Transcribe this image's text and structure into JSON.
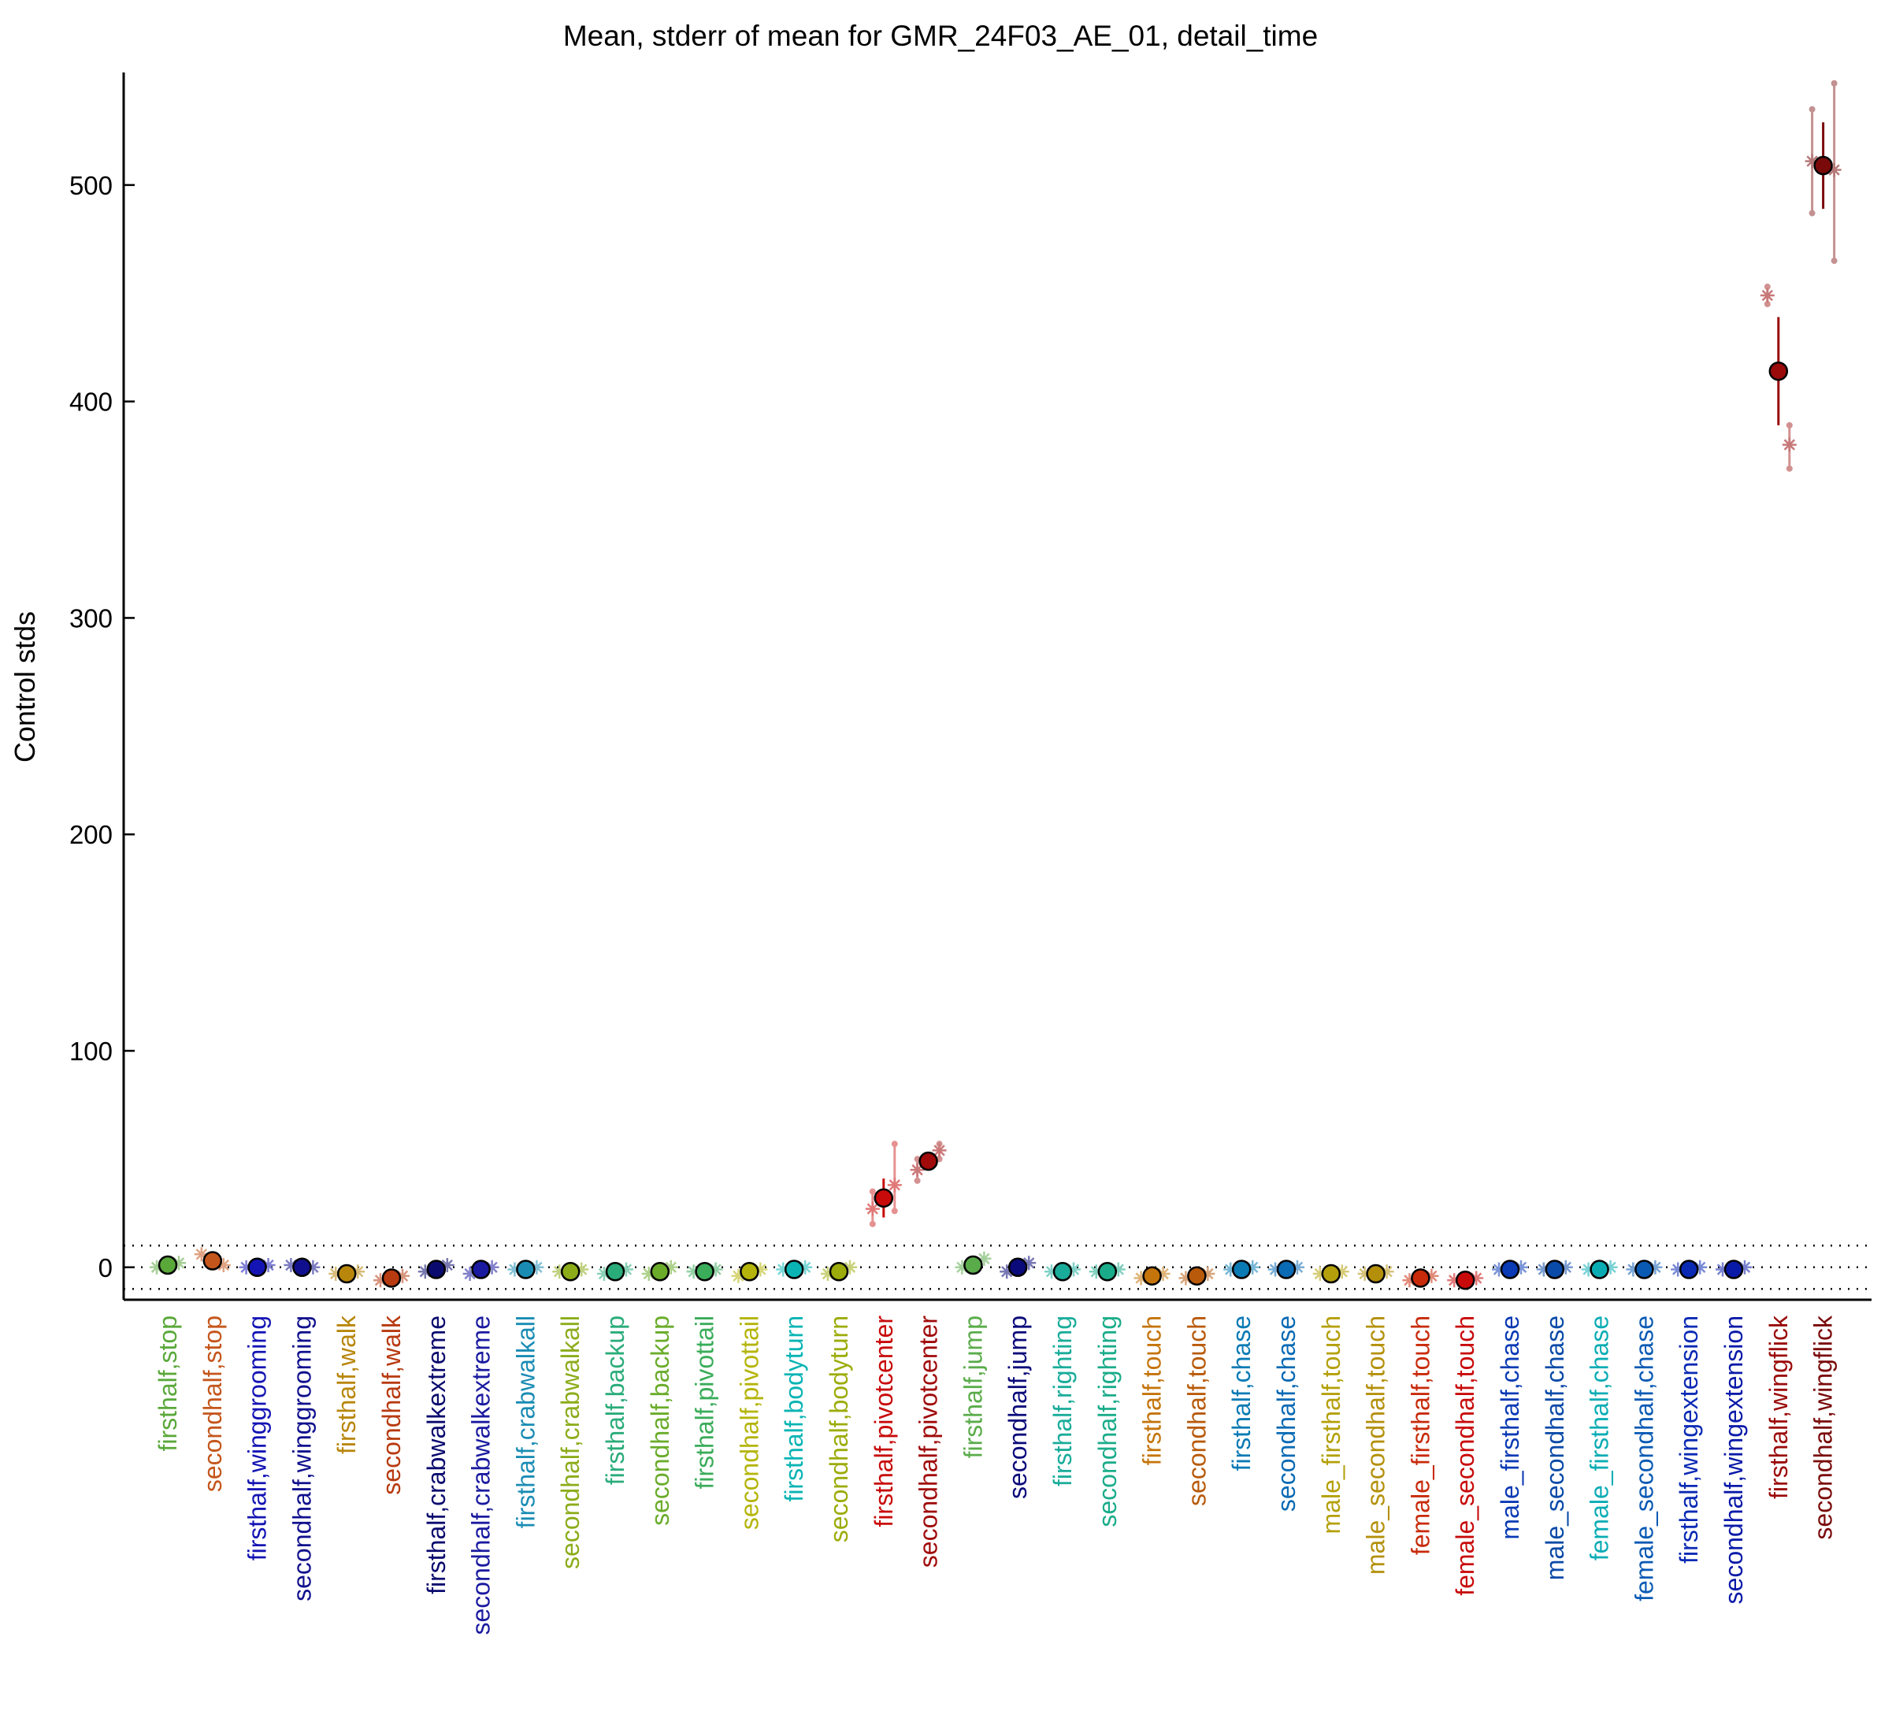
{
  "chart_data": {
    "type": "scatter",
    "title": "Mean, stderr of mean for GMR_24F03_AE_01, detail_time",
    "xlabel": "",
    "ylabel": "Control stds",
    "ylim": [
      -15,
      552
    ],
    "yticks": [
      0,
      100,
      200,
      300,
      400,
      500
    ],
    "reference_lines": [
      -10,
      0,
      10
    ],
    "grid": false,
    "categories": [
      "firsthalf,stop",
      "secondhalf,stop",
      "firsthalf,winggrooming",
      "secondhalf,winggrooming",
      "firsthalf,walk",
      "secondhalf,walk",
      "firsthalf,crabwalkextreme",
      "secondhalf,crabwalkextreme",
      "firsthalf,crabwalkall",
      "secondhalf,crabwalkall",
      "firsthalf,backup",
      "secondhalf,backup",
      "firsthalf,pivottail",
      "secondhalf,pivottail",
      "firsthalf,bodyturn",
      "secondhalf,bodyturn",
      "firsthalf,pivotcenter",
      "secondhalf,pivotcenter",
      "firsthalf,jump",
      "secondhalf,jump",
      "firsthalf,righting",
      "secondhalf,righting",
      "firsthalf,touch",
      "secondhalf,touch",
      "firsthalf,chase",
      "secondhalf,chase",
      "male_firsthalf,touch",
      "male_secondhalf,touch",
      "female_firsthalf,touch",
      "female_secondhalf,touch",
      "male_firsthalf,chase",
      "male_secondhalf,chase",
      "female_firsthalf,chase",
      "female_secondhalf,chase",
      "firsthalf,wingextension",
      "secondhalf,wingextension",
      "firsthalf,wingflick",
      "secondhalf,wingflick"
    ],
    "colors": [
      "#5aa83a",
      "#c4561c",
      "#1414b4",
      "#10108e",
      "#b8860b",
      "#b83a10",
      "#0a0a6e",
      "#1a1aa0",
      "#1a8cb4",
      "#8cac1a",
      "#2aac7a",
      "#6aac2a",
      "#3aac5a",
      "#b4b40a",
      "#0ab4b4",
      "#9cac0a",
      "#c80a0a",
      "#a00a0a",
      "#5aac4a",
      "#0a0a7a",
      "#1aac9a",
      "#1aac8a",
      "#c4740a",
      "#b85a0a",
      "#0a7ab4",
      "#0a6ab4",
      "#b4a00a",
      "#b4900a",
      "#c82a0a",
      "#c80a0a",
      "#0a3ab4",
      "#0a4aa8",
      "#0aacb4",
      "#0a5ab4",
      "#0a2ab4",
      "#0a1aa8",
      "#9a0a0a",
      "#7a0a0a"
    ],
    "series": [
      {
        "name": "mean",
        "values": [
          1,
          3,
          0,
          0,
          -3,
          -5,
          -1,
          -1,
          -1,
          -2,
          -2,
          -2,
          -2,
          -2,
          -1,
          -2,
          32,
          49,
          1,
          0,
          -2,
          -2,
          -4,
          -4,
          -1,
          -1,
          -3,
          -3,
          -5,
          -6,
          -1,
          -1,
          -1,
          -1,
          -1,
          -1,
          414,
          509
        ],
        "stderr": [
          1,
          1,
          1,
          1,
          1,
          1,
          1,
          1,
          1,
          1,
          1,
          1,
          1,
          1,
          1,
          1,
          9,
          4,
          1,
          1,
          1,
          1,
          1,
          1,
          1,
          1,
          1,
          1,
          1,
          1,
          1,
          1,
          1,
          1,
          1,
          1,
          25,
          20
        ]
      },
      {
        "name": "individual",
        "points": [
          [
            1.0,
            0
          ],
          [
            1.0,
            2
          ],
          [
            2.0,
            6
          ],
          [
            2.0,
            1
          ],
          [
            3.0,
            0
          ],
          [
            3.0,
            1
          ],
          [
            4.0,
            1
          ],
          [
            4.0,
            0
          ],
          [
            5.0,
            -3
          ],
          [
            5.0,
            -2
          ],
          [
            6.0,
            -6
          ],
          [
            6.0,
            -4
          ],
          [
            7.0,
            -2
          ],
          [
            7.0,
            1
          ],
          [
            8.0,
            -3
          ],
          [
            8.0,
            0
          ],
          [
            9.0,
            -1
          ],
          [
            9.0,
            0
          ],
          [
            10.0,
            -2
          ],
          [
            10.0,
            -1
          ],
          [
            11.0,
            -3
          ],
          [
            11.0,
            -1
          ],
          [
            12.0,
            -3
          ],
          [
            12.0,
            0
          ],
          [
            13.0,
            -2
          ],
          [
            13.0,
            -1
          ],
          [
            14.0,
            -4
          ],
          [
            14.0,
            -1
          ],
          [
            15.0,
            -1
          ],
          [
            15.0,
            0
          ],
          [
            16.0,
            -3
          ],
          [
            16.0,
            0
          ],
          [
            17.0,
            27
          ],
          [
            17.0,
            38
          ],
          [
            18.0,
            45
          ],
          [
            18.0,
            54
          ],
          [
            19.0,
            0
          ],
          [
            19.0,
            4
          ],
          [
            20.0,
            -2
          ],
          [
            20.0,
            2
          ],
          [
            21.0,
            -2
          ],
          [
            21.0,
            -1
          ],
          [
            22.0,
            -2
          ],
          [
            22.0,
            -1
          ],
          [
            23.0,
            -5
          ],
          [
            23.0,
            -3
          ],
          [
            24.0,
            -5
          ],
          [
            24.0,
            -3
          ],
          [
            25.0,
            -1
          ],
          [
            25.0,
            0
          ],
          [
            26.0,
            -1
          ],
          [
            26.0,
            0
          ],
          [
            27.0,
            -3
          ],
          [
            27.0,
            -2
          ],
          [
            28.0,
            -3
          ],
          [
            28.0,
            -2
          ],
          [
            29.0,
            -6
          ],
          [
            29.0,
            -4
          ],
          [
            30.0,
            -6
          ],
          [
            30.0,
            -5
          ],
          [
            31.0,
            -1
          ],
          [
            31.0,
            0
          ],
          [
            32.0,
            -1
          ],
          [
            32.0,
            0
          ],
          [
            33.0,
            -1
          ],
          [
            33.0,
            0
          ],
          [
            34.0,
            -1
          ],
          [
            34.0,
            0
          ],
          [
            35.0,
            -1
          ],
          [
            35.0,
            0
          ],
          [
            36.0,
            -1
          ],
          [
            36.0,
            0
          ],
          [
            37.0,
            449
          ],
          [
            37.0,
            380
          ],
          [
            38.0,
            511
          ],
          [
            38.0,
            507
          ]
        ],
        "ranges": [
          [
            17.0,
            20,
            35
          ],
          [
            17.0,
            26,
            57
          ],
          [
            18.0,
            40,
            50
          ],
          [
            18.0,
            50,
            57
          ],
          [
            37.0,
            445,
            453
          ],
          [
            37.0,
            369,
            389
          ],
          [
            38.0,
            487,
            535
          ],
          [
            38.0,
            465,
            547
          ]
        ]
      }
    ]
  }
}
